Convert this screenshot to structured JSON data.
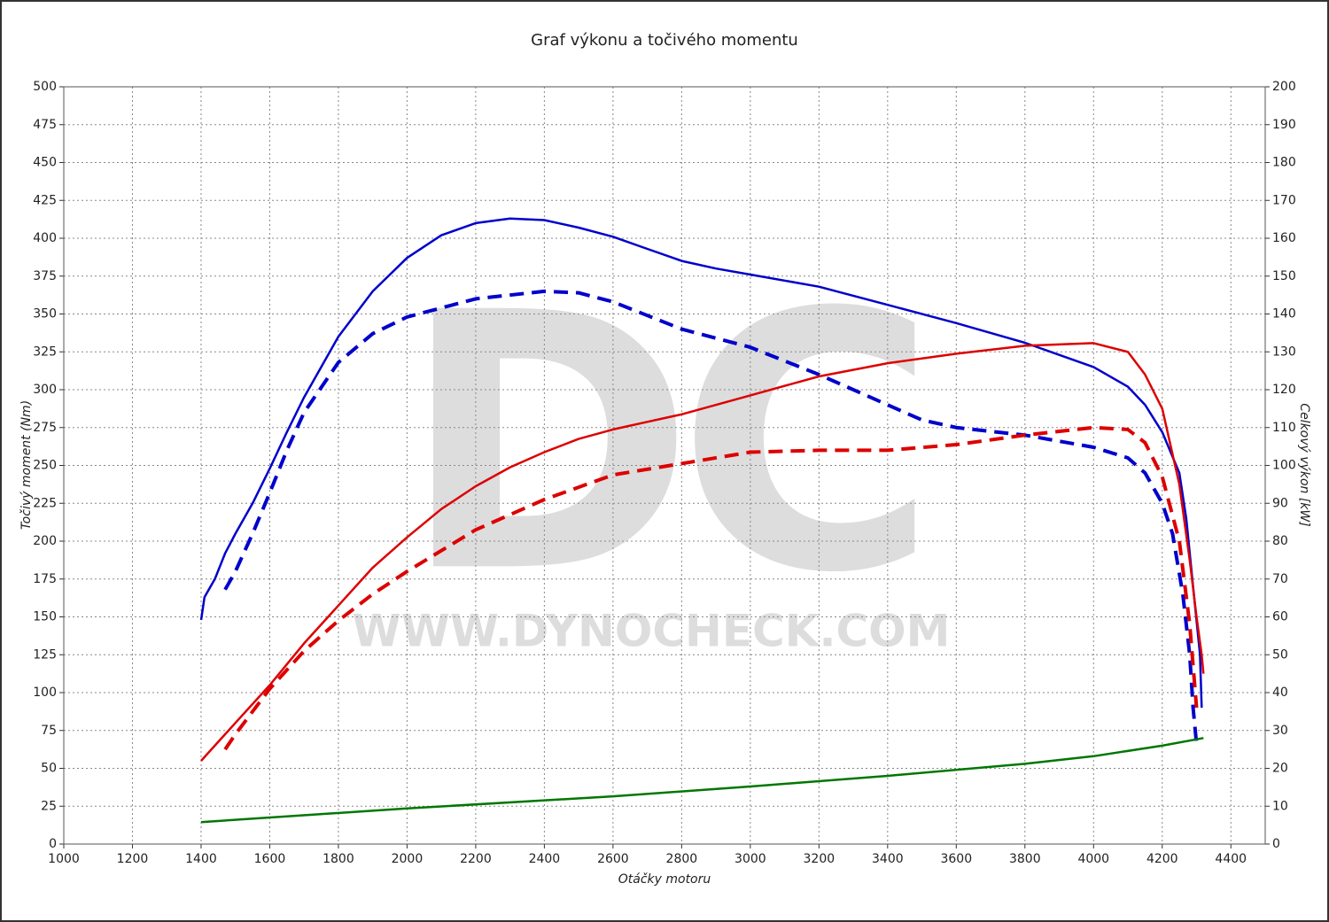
{
  "chart_data": {
    "type": "line",
    "title": "Graf výkonu a točivého momentu",
    "xlabel": "Otáčky motoru",
    "ylabel": "Točivý moment (Nm)",
    "y2label": "Celkový výkon [kW]",
    "watermark_logo": "DC",
    "watermark_url": "WWW.DYNOCHECK.COM",
    "xlim": [
      1000,
      4500
    ],
    "xticks": [
      1000,
      1200,
      1400,
      1600,
      1800,
      2000,
      2200,
      2400,
      2600,
      2800,
      3000,
      3200,
      3400,
      3600,
      3800,
      4000,
      4200,
      4400
    ],
    "ylim": [
      0,
      500
    ],
    "yticks": [
      0,
      25,
      50,
      75,
      100,
      125,
      150,
      175,
      200,
      225,
      250,
      275,
      300,
      325,
      350,
      375,
      400,
      425,
      450,
      475,
      500
    ],
    "y2lim": [
      0,
      200
    ],
    "y2ticks": [
      0,
      10,
      20,
      30,
      40,
      50,
      60,
      70,
      80,
      90,
      100,
      110,
      120,
      130,
      140,
      150,
      160,
      170,
      180,
      190,
      200
    ],
    "grid": true,
    "series": [
      {
        "color": "#0000cc",
        "dash": false,
        "axis": "y",
        "x": [
          1400,
          1410,
          1440,
          1470,
          1500,
          1550,
          1600,
          1650,
          1700,
          1800,
          1900,
          2000,
          2100,
          2200,
          2300,
          2400,
          2500,
          2600,
          2700,
          2800,
          2900,
          3000,
          3200,
          3400,
          3600,
          3800,
          3900,
          4000,
          4100,
          4150,
          4200,
          4250,
          4270,
          4290,
          4310,
          4315
        ],
        "values": [
          148,
          163,
          175,
          192,
          205,
          225,
          248,
          272,
          295,
          335,
          365,
          387,
          402,
          410,
          413,
          412,
          407,
          401,
          393,
          385,
          380,
          376,
          368,
          356,
          344,
          331,
          323,
          315,
          302,
          290,
          272,
          245,
          215,
          170,
          125,
          90
        ]
      },
      {
        "color": "#0000cc",
        "dash": true,
        "axis": "y",
        "x": [
          1470,
          1500,
          1550,
          1600,
          1650,
          1700,
          1800,
          1900,
          2000,
          2200,
          2400,
          2500,
          2600,
          2700,
          2800,
          3000,
          3200,
          3400,
          3500,
          3600,
          3800,
          4000,
          4100,
          4150,
          4200,
          4230,
          4260,
          4280,
          4290,
          4300
        ],
        "values": [
          168,
          180,
          205,
          232,
          260,
          285,
          318,
          337,
          348,
          360,
          365,
          364,
          358,
          349,
          340,
          328,
          310,
          290,
          280,
          275,
          270,
          262,
          255,
          245,
          225,
          205,
          165,
          125,
          90,
          66
        ]
      },
      {
        "color": "#dd0000",
        "dash": false,
        "axis": "y2",
        "x": [
          1400,
          1420,
          1450,
          1500,
          1600,
          1700,
          1800,
          1900,
          2000,
          2100,
          2200,
          2300,
          2400,
          2500,
          2600,
          2700,
          2800,
          3000,
          3200,
          3400,
          3600,
          3800,
          4000,
          4100,
          4150,
          4200,
          4250,
          4280,
          4300,
          4315,
          4320
        ],
        "values": [
          22,
          24,
          27,
          32,
          42,
          53,
          63,
          73,
          81,
          88.5,
          94.5,
          99.5,
          103.5,
          107,
          109.5,
          111.5,
          113.5,
          118.5,
          123.5,
          127,
          129.5,
          131.6,
          132.3,
          130,
          124,
          115,
          95,
          75,
          60,
          50,
          45
        ]
      },
      {
        "color": "#dd0000",
        "dash": true,
        "axis": "y2",
        "x": [
          1470,
          1500,
          1600,
          1700,
          1800,
          1900,
          2000,
          2200,
          2400,
          2600,
          2800,
          3000,
          3200,
          3400,
          3600,
          3800,
          4000,
          4100,
          4150,
          4200,
          4250,
          4280,
          4300
        ],
        "values": [
          25,
          29,
          41,
          51,
          59,
          66,
          72,
          83,
          91,
          97.5,
          100.5,
          103.5,
          104,
          104,
          105.5,
          108,
          110,
          109.5,
          106,
          97,
          80,
          58,
          36
        ]
      },
      {
        "color": "#007700",
        "dash": false,
        "axis": "y",
        "x": [
          1400,
          2000,
          2600,
          3000,
          3400,
          3800,
          4000,
          4200,
          4320
        ],
        "values": [
          14.5,
          23.5,
          31.5,
          38,
          45,
          53,
          58,
          65,
          70
        ]
      }
    ]
  }
}
